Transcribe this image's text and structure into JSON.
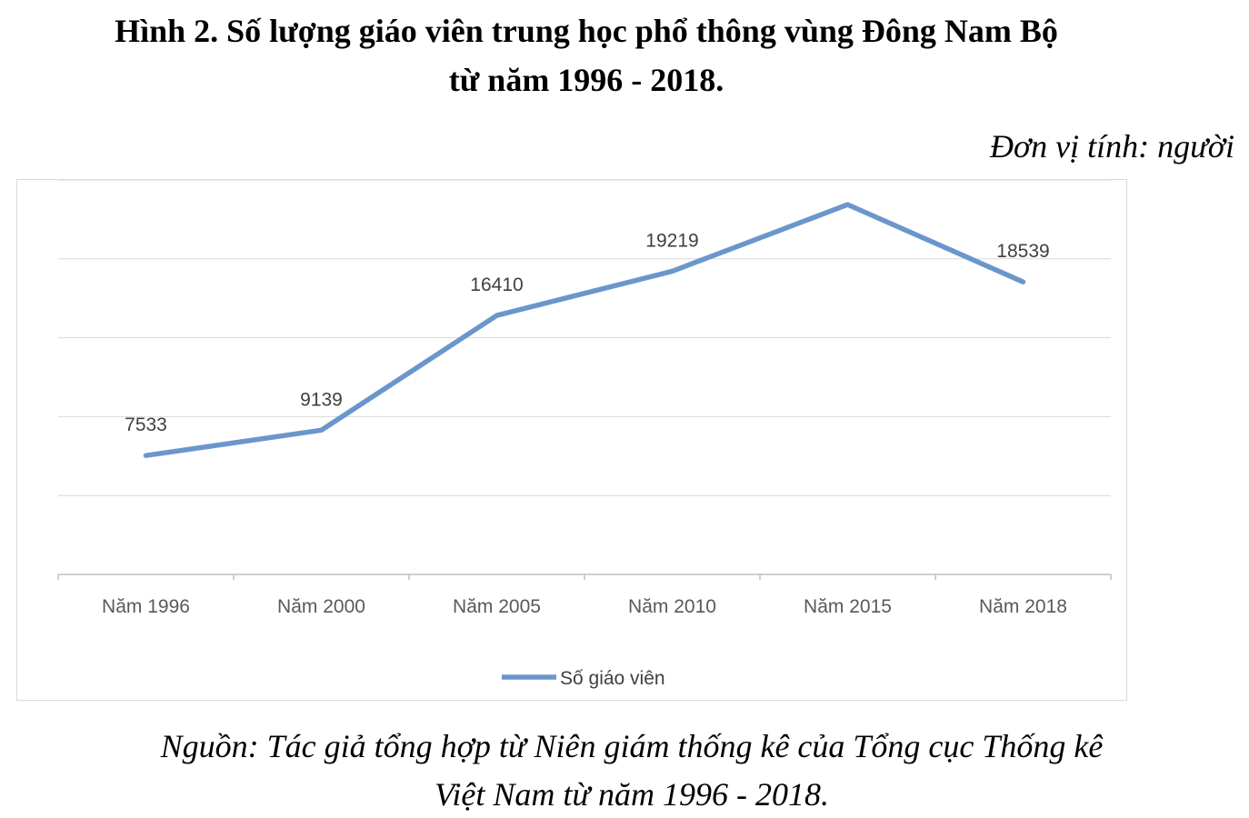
{
  "header": {
    "title_line1": "Hình 2. Số lượng giáo viên trung học phổ thông vùng Đông Nam Bộ",
    "title_line2": "từ năm 1996 - 2018.",
    "unit": "Đơn vị tính: người"
  },
  "footer": {
    "source_line1": "Nguồn: Tác giả tổng hợp từ Niên giám thống kê của Tổng cục Thống kê",
    "source_line2": "Việt Nam từ năm 1996 - 2018."
  },
  "chart_data": {
    "type": "line",
    "categories": [
      "Năm 1996",
      "Năm 2000",
      "Năm 2005",
      "Năm 2010",
      "Năm 2015",
      "Năm 2018"
    ],
    "series": [
      {
        "name": "Số giáo viên",
        "values": [
          7533,
          9139,
          16410,
          19219,
          23440,
          18539
        ],
        "color": "#6b96cc"
      }
    ],
    "ylim": [
      0,
      25000
    ],
    "gridlines": true,
    "y_axis_labels_shown": false,
    "data_labels": true,
    "legend_position": "bottom"
  }
}
